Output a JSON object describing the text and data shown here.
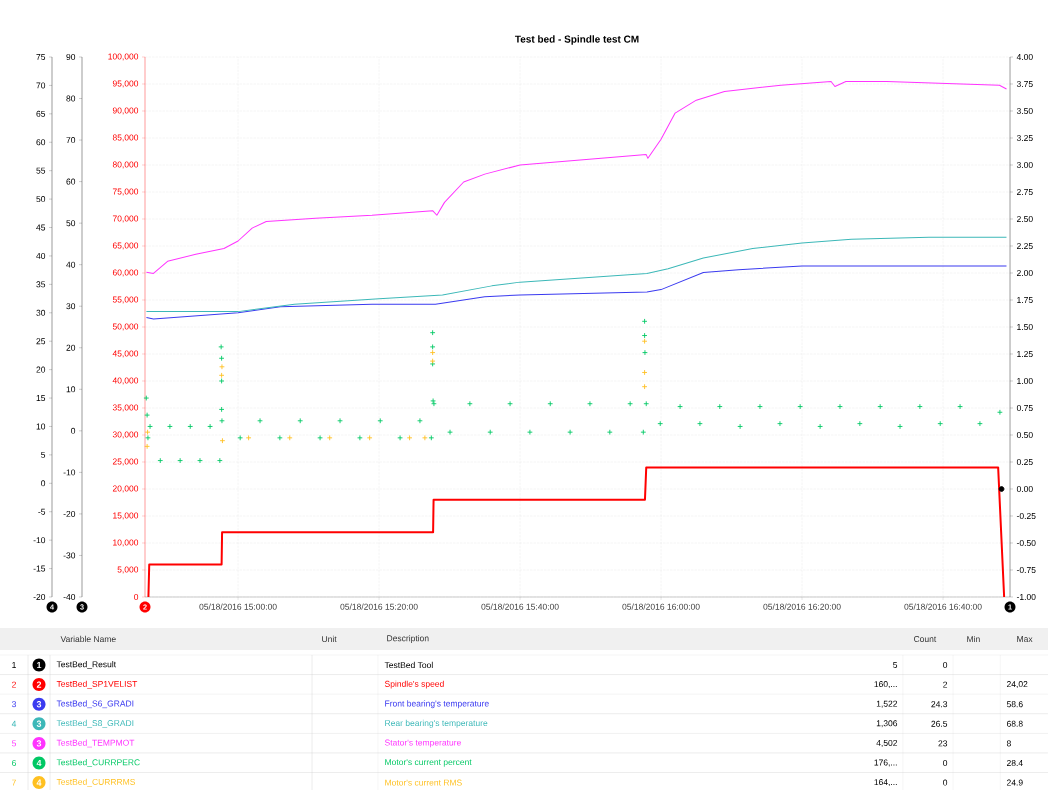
{
  "chart_data": [
    {
      "type": "line",
      "title": "Test bed - Spindle test CM",
      "ylabel": "2",
      "y2label": "1",
      "y3label": "3",
      "xlim": [
        "2016-05-18T14:46:48",
        "2016-05-18T16:49:30"
      ],
      "xticks": [
        {
          "value": "2016-05-18T15:00",
          "label": "05/18/2016 15:00:00"
        },
        {
          "value": "2016-05-18T15:20",
          "label": "05/18/2016 15:20:00"
        },
        {
          "value": "2016-05-18T15:40",
          "label": "05/18/2016 15:40:00"
        },
        {
          "value": "2016-05-18T16:00",
          "label": "05/18/2016 16:00:00"
        },
        {
          "value": "2016-05-18T16:20",
          "label": "05/18/2016 16:20:00"
        },
        {
          "value": "2016-05-18T16:40",
          "label": "05/18/2016 16:40:00"
        }
      ],
      "ylim": [
        0,
        100000
      ],
      "yticks": [
        0,
        {
          "value": 5000,
          "label": "5,000"
        },
        {
          "value": 10000,
          "label": "10,000"
        },
        {
          "value": 15000,
          "label": "15,000"
        },
        {
          "value": 20000,
          "label": "20,000"
        },
        {
          "value": 25000,
          "label": "25,000"
        },
        {
          "value": 30000,
          "label": "30,000"
        },
        {
          "value": 35000,
          "label": "35,000"
        },
        {
          "value": 40000,
          "label": "40,000"
        },
        {
          "value": 45000,
          "label": "45,000"
        },
        {
          "value": 50000,
          "label": "50,000"
        },
        {
          "value": 55000,
          "label": "55,000"
        },
        {
          "value": 60000,
          "label": "60,000"
        },
        {
          "value": 65000,
          "label": "65,000"
        },
        {
          "value": 70000,
          "label": "70,000"
        },
        {
          "value": 75000,
          "label": "75,000"
        },
        {
          "value": 80000,
          "label": "80,000"
        },
        {
          "value": 85000,
          "label": "85,000"
        },
        {
          "value": 90000,
          "label": "90,000"
        },
        {
          "value": 95000,
          "label": "95,000"
        },
        {
          "value": 100000,
          "label": "100,000"
        }
      ],
      "y2lim": [
        -1,
        4
      ],
      "y2ticks": [
        {
          "value": -1,
          "label": "-1.00"
        },
        {
          "value": -0.75,
          "label": "-0.75"
        },
        {
          "value": -0.5,
          "label": "-0.50"
        },
        {
          "value": -0.25,
          "label": "-0.25"
        },
        {
          "value": 0,
          "label": "0.00"
        },
        {
          "value": 0.25,
          "label": "0.25"
        },
        {
          "value": 0.5,
          "label": "0.50"
        },
        {
          "value": 0.75,
          "label": "0.75"
        },
        {
          "value": 1,
          "label": "1.00"
        },
        {
          "value": 1.25,
          "label": "1.25"
        },
        {
          "value": 1.5,
          "label": "1.50"
        },
        {
          "value": 1.75,
          "label": "1.75"
        },
        {
          "value": 2,
          "label": "2.00"
        },
        {
          "value": 2.25,
          "label": "2.25"
        },
        {
          "value": 2.5,
          "label": "2.50"
        },
        {
          "value": 2.75,
          "label": "2.75"
        },
        {
          "value": 3,
          "label": "3.00"
        },
        {
          "value": 3.25,
          "label": "3.25"
        },
        {
          "value": 3.5,
          "label": "3.50"
        },
        {
          "value": 3.75,
          "label": "3.75"
        },
        {
          "value": 4,
          "label": "4.00"
        }
      ],
      "y3lim": [
        -40,
        90
      ],
      "y3ticks": [
        -40,
        -30,
        -20,
        -10,
        0,
        10,
        20,
        30,
        40,
        50,
        60,
        70,
        80,
        90
      ],
      "grid": true,
      "legend": "bottom",
      "series": [
        {
          "name": "TestBed_Result",
          "type": "scatter",
          "axis": "y2",
          "color": "#000000",
          "x": [
            "2016-05-18T16:48:18"
          ],
          "values": [
            0
          ]
        },
        {
          "name": "TestBed_SP1VELIST",
          "color": "#ff0000",
          "x": [
            "2016-05-18T14:47:17",
            "2016-05-18T14:47:24",
            "2016-05-18T14:57:40",
            "2016-05-18T14:57:44",
            "2016-05-18T15:27:40",
            "2016-05-18T15:27:44",
            "2016-05-18T15:57:43",
            "2016-05-18T15:57:54",
            "2016-05-18T16:47:49",
            "2016-05-18T16:48:40"
          ],
          "values": [
            0,
            6000,
            6000,
            12000,
            12000,
            18000,
            18000,
            24000,
            24000,
            0
          ]
        },
        {
          "name": "TestBed_S6_GRADI",
          "axis": "y3",
          "color": "#3a3af0",
          "x": [
            "2016-05-18T14:47",
            "2016-05-18T14:48",
            "2016-05-18T15:00",
            "2016-05-18T15:06",
            "2016-05-18T15:19",
            "2016-05-18T15:28",
            "2016-05-18T15:35",
            "2016-05-18T15:40",
            "2016-05-18T15:58",
            "2016-05-18T16:00",
            "2016-05-18T16:06",
            "2016-05-18T16:11",
            "2016-05-18T16:17",
            "2016-05-18T16:20",
            "2016-05-18T16:49"
          ],
          "values": [
            27.3,
            26.9,
            28.4,
            29.9,
            30.5,
            30.5,
            32.3,
            32.7,
            33.4,
            34.0,
            38.1,
            38.8,
            39.4,
            39.7,
            39.7
          ]
        },
        {
          "name": "TestBed_S8_GRADI",
          "axis": "y3",
          "color": "#3cb8b8",
          "x": [
            "2016-05-18T14:47",
            "2016-05-18T15:00",
            "2016-05-18T15:08",
            "2016-05-18T15:20",
            "2016-05-18T15:29",
            "2016-05-18T15:36",
            "2016-05-18T15:40",
            "2016-05-18T15:58",
            "2016-05-18T16:01",
            "2016-05-18T16:06",
            "2016-05-18T16:13",
            "2016-05-18T16:20",
            "2016-05-18T16:27",
            "2016-05-18T16:38",
            "2016-05-18T16:49"
          ],
          "values": [
            28.7,
            28.7,
            30.5,
            31.8,
            32.7,
            34.9,
            35.8,
            37.9,
            39.0,
            41.6,
            43.9,
            45.2,
            46.1,
            46.6,
            46.6
          ]
        },
        {
          "name": "TestBed_TEMPMOT",
          "axis": "y3",
          "color": "#ff33ff",
          "x": [
            "2016-05-18T14:47",
            "2016-05-18T14:48",
            "2016-05-18T14:50",
            "2016-05-18T14:54",
            "2016-05-18T14:58",
            "2016-05-18T15:00",
            "2016-05-18T15:02",
            "2016-05-18T15:04",
            "2016-05-18T15:11",
            "2016-05-18T15:19",
            "2016-05-18T15:27:36",
            "2016-05-18T15:28:12",
            "2016-05-18T15:29:17",
            "2016-05-18T15:32",
            "2016-05-18T15:35",
            "2016-05-18T15:40",
            "2016-05-18T15:57:54",
            "2016-05-18T15:58:08",
            "2016-05-18T16:00",
            "2016-05-18T16:02",
            "2016-05-18T16:05",
            "2016-05-18T16:09",
            "2016-05-18T16:17",
            "2016-05-18T16:24:07",
            "2016-05-18T16:24:40",
            "2016-05-18T16:26:13",
            "2016-05-18T16:32",
            "2016-05-18T16:48",
            "2016-05-18T16:49"
          ],
          "values": [
            38.2,
            37.9,
            40.8,
            42.5,
            43.9,
            45.7,
            48.8,
            50.4,
            51.2,
            51.9,
            53.0,
            51.9,
            55.0,
            59.9,
            61.8,
            64.0,
            66.5,
            65.6,
            70.2,
            76.5,
            79.6,
            81.7,
            83.2,
            84.1,
            82.9,
            84.1,
            84.1,
            83.2,
            82.3
          ]
        }
      ],
      "annotations": [
        "Variable Name",
        "Unit",
        "Description",
        "Count",
        "Min",
        "Max",
        "1",
        "1",
        "TestBed Tool",
        "5",
        "0",
        "2",
        "2",
        "Spindle's speed",
        "160,...",
        "2",
        "24,02",
        "3",
        "3",
        "Front bearing's temperature",
        "1,522",
        "24.3",
        "58.6",
        "4",
        "3",
        "Rear bearing's temperature",
        "1,306",
        "26.5",
        "68.8",
        "5",
        "3",
        "Stator's temperature",
        "4,502",
        "23",
        "8",
        "6",
        "4",
        "Motor's current percent",
        "176,...",
        "0",
        "28.4",
        "7",
        "4",
        "Motor's current RMS",
        "164,...",
        "0",
        "24.9"
      ]
    },
    {
      "type": "scatter",
      "marker": "cross",
      "ylabel": "4",
      "tick_labels": "y",
      "legend": "bottom",
      "xlim": [
        "2016-05-18T14:46:48",
        "2016-05-18T16:49:30"
      ],
      "ylim": [
        -20,
        75
      ],
      "yticks": [
        -20,
        -15,
        -10,
        -5,
        0,
        5,
        10,
        15,
        20,
        25,
        30,
        35,
        40,
        45,
        50,
        55,
        60,
        65,
        70,
        75
      ],
      "series": [
        {
          "name": "TestBed_CURRPERC",
          "color": "#00c864",
          "x": [
            "2016-05-18T14:46:59",
            "2016-05-18T14:47:06",
            "2016-05-18T14:47:13",
            "2016-05-18T14:47:31",
            "2016-05-18T14:48:58",
            "2016-05-18T14:50:20",
            "2016-05-18T14:51:47",
            "2016-05-18T14:53:13",
            "2016-05-18T14:54:36",
            "2016-05-18T14:56:02",
            "2016-05-18T14:57:25",
            "2016-05-18T14:57:36",
            "2016-05-18T14:57:40",
            "2016-05-18T14:57:40",
            "2016-05-18T14:57:40",
            "2016-05-18T14:57:43",
            "2016-05-18T15:00:18",
            "2016-05-18T15:03:07",
            "2016-05-18T15:05:56",
            "2016-05-18T15:08:49",
            "2016-05-18T15:11:38",
            "2016-05-18T15:14:28",
            "2016-05-18T15:17:17",
            "2016-05-18T15:20:10",
            "2016-05-18T15:22:59",
            "2016-05-18T15:25:48",
            "2016-05-18T15:27:25",
            "2016-05-18T15:27:36",
            "2016-05-18T15:27:36",
            "2016-05-18T15:27:36",
            "2016-05-18T15:27:40",
            "2016-05-18T15:27:47",
            "2016-05-18T15:30:04",
            "2016-05-18T15:32:53",
            "2016-05-18T15:35:46",
            "2016-05-18T15:38:35",
            "2016-05-18T15:41:24",
            "2016-05-18T15:44:17",
            "2016-05-18T15:47:06",
            "2016-05-18T15:49:55",
            "2016-05-18T15:52:44",
            "2016-05-18T15:55:37",
            "2016-05-18T15:57:29",
            "2016-05-18T15:57:40",
            "2016-05-18T15:57:40",
            "2016-05-18T15:57:43",
            "2016-05-18T15:57:54",
            "2016-05-18T15:59:53",
            "2016-05-18T16:02:42",
            "2016-05-18T16:05:31",
            "2016-05-18T16:08:20",
            "2016-05-18T16:11:13",
            "2016-05-18T16:14:02",
            "2016-05-18T16:16:52",
            "2016-05-18T16:19:44",
            "2016-05-18T16:22:34",
            "2016-05-18T16:25:23",
            "2016-05-18T16:28:12",
            "2016-05-18T16:31:05",
            "2016-05-18T16:33:54",
            "2016-05-18T16:36:43",
            "2016-05-18T16:39:36",
            "2016-05-18T16:42:25",
            "2016-05-18T16:45:14",
            "2016-05-18T16:48:04"
          ],
          "values": [
            15,
            12,
            8,
            10,
            4,
            10,
            4,
            10,
            4,
            10,
            4,
            24,
            22,
            18,
            13,
            11,
            8,
            11,
            8,
            11,
            8,
            11,
            8,
            11,
            8,
            11,
            8,
            26.5,
            24,
            21,
            14.5,
            14,
            9,
            14,
            9,
            14,
            9,
            14,
            9,
            14,
            9,
            14,
            9,
            28.5,
            26,
            23,
            14,
            10.5,
            13.5,
            10.5,
            13.5,
            10,
            13.5,
            10.5,
            13.5,
            10,
            13.5,
            10.5,
            13.5,
            10,
            13.5,
            10.5,
            13.5,
            10.5,
            12.5
          ]
        },
        {
          "name": "TestBed_CURRRMS",
          "color": "#ffc020",
          "x": [
            "2016-05-18T14:47:06",
            "2016-05-18T14:47:10",
            "2016-05-18T14:57:40",
            "2016-05-18T14:57:43",
            "2016-05-18T14:57:47",
            "2016-05-18T15:01:30",
            "2016-05-18T15:07:20",
            "2016-05-18T15:13:00",
            "2016-05-18T15:18:40",
            "2016-05-18T15:24:20",
            "2016-05-18T15:26:30",
            "2016-05-18T15:27:36",
            "2016-05-18T15:27:36",
            "2016-05-18T15:57:40",
            "2016-05-18T15:57:40",
            "2016-05-18T15:57:40"
          ],
          "values": [
            6.5,
            9,
            19,
            20.5,
            7.5,
            8,
            8,
            8,
            8,
            8,
            8,
            21.5,
            23,
            25,
            19.5,
            17
          ]
        }
      ]
    }
  ]
}
